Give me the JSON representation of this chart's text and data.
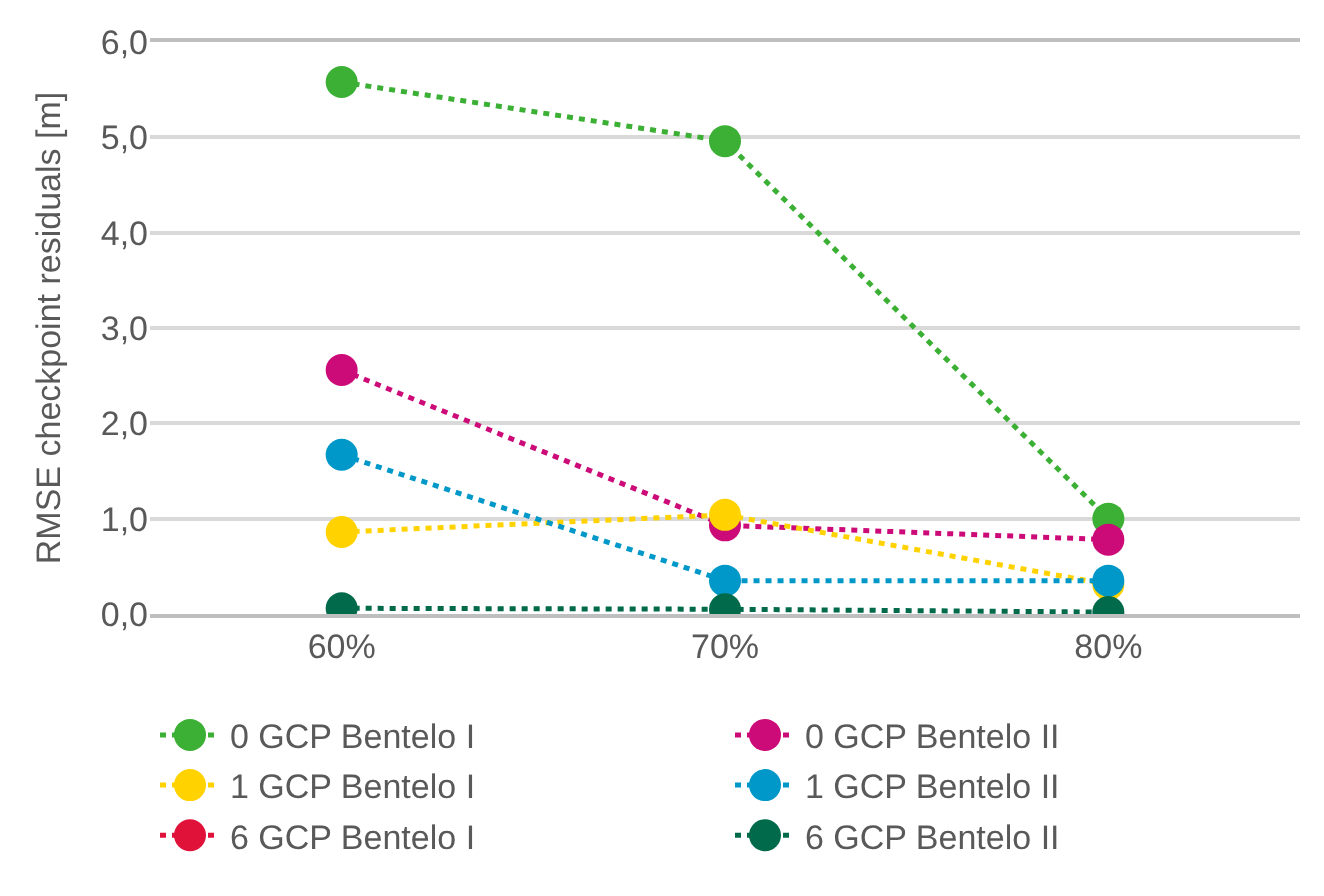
{
  "chart_data": {
    "type": "line",
    "ylabel": "RMSE checkpoint residuals [m]",
    "categories": [
      "60%",
      "70%",
      "80%"
    ],
    "series": [
      {
        "name": "0 GCP Bentelo I",
        "color": "#3bb035",
        "values": [
          5.58,
          4.96,
          1.0
        ]
      },
      {
        "name": "0 GCP Bentelo II",
        "color": "#cc0a78",
        "values": [
          2.56,
          0.93,
          0.78
        ]
      },
      {
        "name": "1 GCP Bentelo I",
        "color": "#ffd200",
        "values": [
          0.86,
          1.04,
          0.31
        ]
      },
      {
        "name": "1 GCP Bentelo II",
        "color": "#0098c8",
        "values": [
          1.67,
          0.35,
          0.35
        ]
      },
      {
        "name": "6 GCP Bentelo I",
        "color": "#e0123a",
        "values": [
          null,
          null,
          null
        ]
      },
      {
        "name": "6 GCP Bentelo II",
        "color": "#006a4a",
        "values": [
          0.06,
          0.05,
          0.02
        ]
      }
    ],
    "ylim": [
      0,
      6
    ],
    "yticks": [
      {
        "value": 0,
        "label": "0,0"
      },
      {
        "value": 1,
        "label": "1,0"
      },
      {
        "value": 2,
        "label": "2,0"
      },
      {
        "value": 3,
        "label": "3,0"
      },
      {
        "value": 4,
        "label": "4,0"
      },
      {
        "value": 5,
        "label": "5,0"
      },
      {
        "value": 6,
        "label": "6,0"
      }
    ],
    "grid": "y",
    "legend": "bottom",
    "marker": "circle",
    "line_style": "dotted"
  }
}
